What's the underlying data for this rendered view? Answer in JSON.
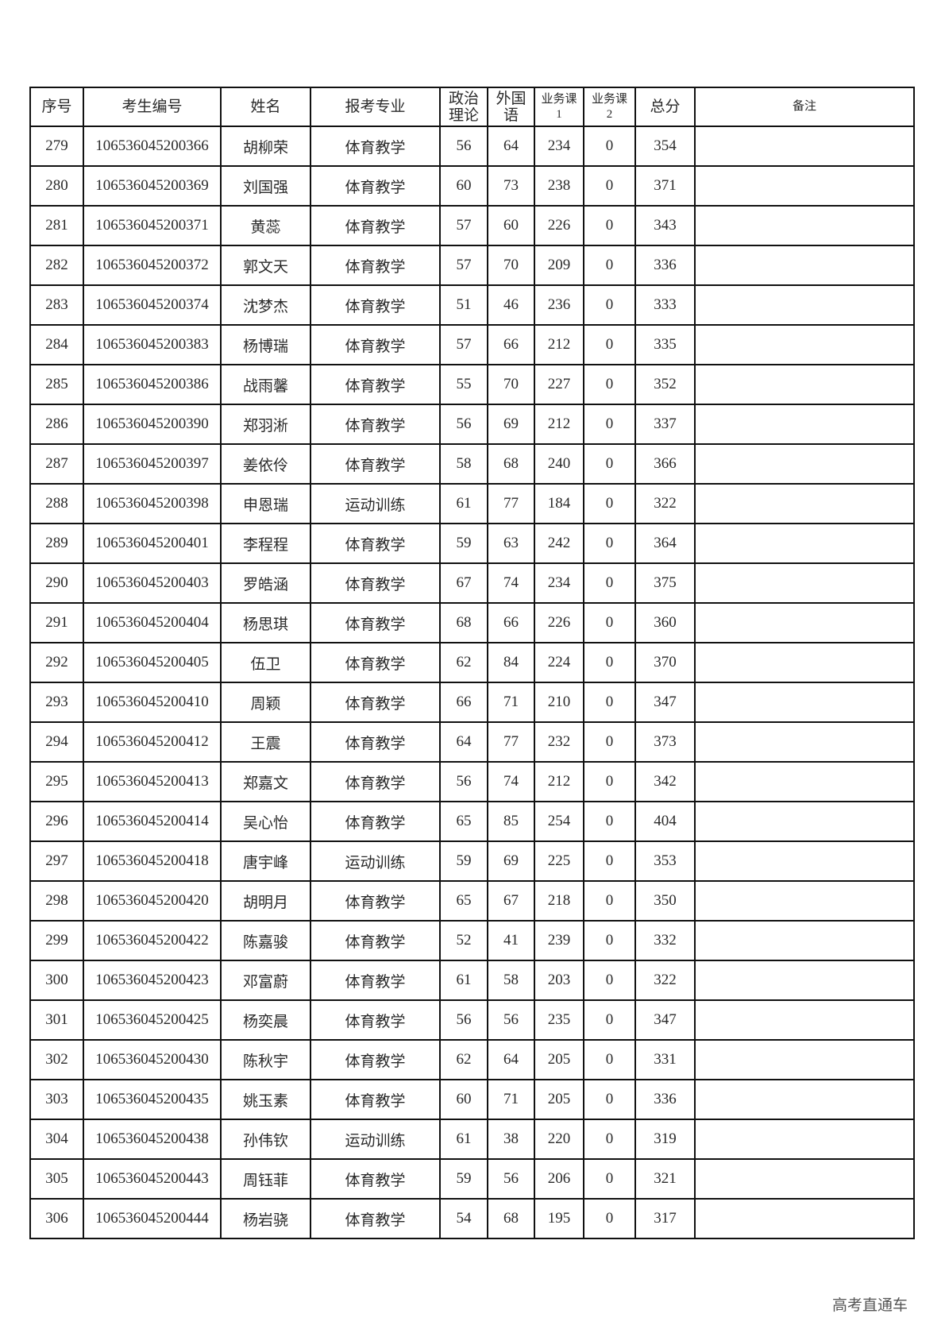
{
  "headers": [
    "序号",
    "考生编号",
    "姓名",
    "报考专业",
    "政治\n理论",
    "外国\n语",
    "业务课\n1",
    "业务课\n2",
    "总分",
    "备注"
  ],
  "rows": [
    [
      "279",
      "106536045200366",
      "胡柳荣",
      "体育教学",
      "56",
      "64",
      "234",
      "0",
      "354",
      ""
    ],
    [
      "280",
      "106536045200369",
      "刘国强",
      "体育教学",
      "60",
      "73",
      "238",
      "0",
      "371",
      ""
    ],
    [
      "281",
      "106536045200371",
      "黄蕊",
      "体育教学",
      "57",
      "60",
      "226",
      "0",
      "343",
      ""
    ],
    [
      "282",
      "106536045200372",
      "郭文天",
      "体育教学",
      "57",
      "70",
      "209",
      "0",
      "336",
      ""
    ],
    [
      "283",
      "106536045200374",
      "沈梦杰",
      "体育教学",
      "51",
      "46",
      "236",
      "0",
      "333",
      ""
    ],
    [
      "284",
      "106536045200383",
      "杨博瑞",
      "体育教学",
      "57",
      "66",
      "212",
      "0",
      "335",
      ""
    ],
    [
      "285",
      "106536045200386",
      "战雨馨",
      "体育教学",
      "55",
      "70",
      "227",
      "0",
      "352",
      ""
    ],
    [
      "286",
      "106536045200390",
      "郑羽淅",
      "体育教学",
      "56",
      "69",
      "212",
      "0",
      "337",
      ""
    ],
    [
      "287",
      "106536045200397",
      "姜依伶",
      "体育教学",
      "58",
      "68",
      "240",
      "0",
      "366",
      ""
    ],
    [
      "288",
      "106536045200398",
      "申恩瑞",
      "运动训练",
      "61",
      "77",
      "184",
      "0",
      "322",
      ""
    ],
    [
      "289",
      "106536045200401",
      "李程程",
      "体育教学",
      "59",
      "63",
      "242",
      "0",
      "364",
      ""
    ],
    [
      "290",
      "106536045200403",
      "罗皓涵",
      "体育教学",
      "67",
      "74",
      "234",
      "0",
      "375",
      ""
    ],
    [
      "291",
      "106536045200404",
      "杨思琪",
      "体育教学",
      "68",
      "66",
      "226",
      "0",
      "360",
      ""
    ],
    [
      "292",
      "106536045200405",
      "伍卫",
      "体育教学",
      "62",
      "84",
      "224",
      "0",
      "370",
      ""
    ],
    [
      "293",
      "106536045200410",
      "周颖",
      "体育教学",
      "66",
      "71",
      "210",
      "0",
      "347",
      ""
    ],
    [
      "294",
      "106536045200412",
      "王震",
      "体育教学",
      "64",
      "77",
      "232",
      "0",
      "373",
      ""
    ],
    [
      "295",
      "106536045200413",
      "郑嘉文",
      "体育教学",
      "56",
      "74",
      "212",
      "0",
      "342",
      ""
    ],
    [
      "296",
      "106536045200414",
      "吴心怡",
      "体育教学",
      "65",
      "85",
      "254",
      "0",
      "404",
      ""
    ],
    [
      "297",
      "106536045200418",
      "唐宇峰",
      "运动训练",
      "59",
      "69",
      "225",
      "0",
      "353",
      ""
    ],
    [
      "298",
      "106536045200420",
      "胡明月",
      "体育教学",
      "65",
      "67",
      "218",
      "0",
      "350",
      ""
    ],
    [
      "299",
      "106536045200422",
      "陈嘉骏",
      "体育教学",
      "52",
      "41",
      "239",
      "0",
      "332",
      ""
    ],
    [
      "300",
      "106536045200423",
      "邓富蔚",
      "体育教学",
      "61",
      "58",
      "203",
      "0",
      "322",
      ""
    ],
    [
      "301",
      "106536045200425",
      "杨奕晨",
      "体育教学",
      "56",
      "56",
      "235",
      "0",
      "347",
      ""
    ],
    [
      "302",
      "106536045200430",
      "陈秋宇",
      "体育教学",
      "62",
      "64",
      "205",
      "0",
      "331",
      ""
    ],
    [
      "303",
      "106536045200435",
      "姚玉素",
      "体育教学",
      "60",
      "71",
      "205",
      "0",
      "336",
      ""
    ],
    [
      "304",
      "106536045200438",
      "孙伟钦",
      "运动训练",
      "61",
      "38",
      "220",
      "0",
      "319",
      ""
    ],
    [
      "305",
      "106536045200443",
      "周钰菲",
      "体育教学",
      "59",
      "56",
      "206",
      "0",
      "321",
      ""
    ],
    [
      "306",
      "106536045200444",
      "杨岩骁",
      "体育教学",
      "54",
      "68",
      "195",
      "0",
      "317",
      ""
    ]
  ],
  "watermark": "高考直通车"
}
